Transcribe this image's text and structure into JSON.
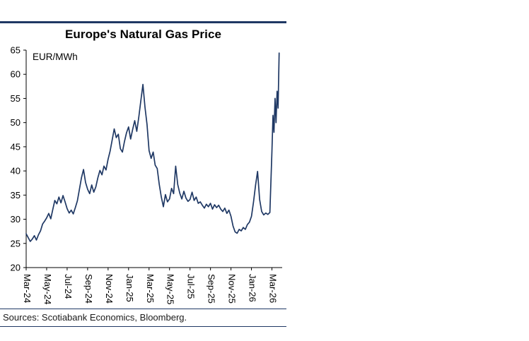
{
  "chart_data": {
    "type": "line",
    "title": "Europe's Natural Gas Price",
    "ylabel": "EUR/MWh",
    "xlabel": "",
    "source": "Sources: Scotiabank Economics, Bloomberg.",
    "legend": "none",
    "grid": false,
    "line_color": "#1f3864",
    "axis_color": "#000000",
    "ylim": [
      20,
      65
    ],
    "y_ticks": [
      20,
      25,
      30,
      35,
      40,
      45,
      50,
      55,
      60,
      65
    ],
    "xlim_months": [
      0,
      25
    ],
    "x_ticks": [
      {
        "month": 0,
        "label": "Mar-24"
      },
      {
        "month": 2,
        "label": "May-24"
      },
      {
        "month": 4,
        "label": "Jul-24"
      },
      {
        "month": 6,
        "label": "Sep-24"
      },
      {
        "month": 8,
        "label": "Nov-24"
      },
      {
        "month": 10,
        "label": "Jan-25"
      },
      {
        "month": 12,
        "label": "Mar-25"
      },
      {
        "month": 14,
        "label": "May-25"
      },
      {
        "month": 16,
        "label": "Jul-25"
      },
      {
        "month": 18,
        "label": "Sep-25"
      },
      {
        "month": 20,
        "label": "Nov-25"
      },
      {
        "month": 22,
        "label": "Jan-26"
      },
      {
        "month": 24,
        "label": "Mar-26"
      }
    ],
    "points": [
      [
        0.0,
        27.0
      ],
      [
        0.2,
        26.2
      ],
      [
        0.4,
        25.4
      ],
      [
        0.6,
        25.9
      ],
      [
        0.8,
        26.6
      ],
      [
        1.0,
        25.7
      ],
      [
        1.2,
        26.8
      ],
      [
        1.4,
        27.6
      ],
      [
        1.6,
        29.0
      ],
      [
        1.8,
        29.6
      ],
      [
        2.0,
        30.3
      ],
      [
        2.2,
        31.2
      ],
      [
        2.4,
        30.1
      ],
      [
        2.6,
        32.0
      ],
      [
        2.8,
        33.9
      ],
      [
        3.0,
        33.2
      ],
      [
        3.2,
        34.6
      ],
      [
        3.4,
        33.4
      ],
      [
        3.6,
        34.9
      ],
      [
        3.8,
        33.6
      ],
      [
        4.0,
        32.2
      ],
      [
        4.2,
        31.3
      ],
      [
        4.4,
        31.9
      ],
      [
        4.6,
        31.1
      ],
      [
        4.8,
        32.4
      ],
      [
        5.0,
        33.8
      ],
      [
        5.2,
        36.2
      ],
      [
        5.4,
        38.6
      ],
      [
        5.6,
        40.3
      ],
      [
        5.8,
        37.6
      ],
      [
        6.0,
        36.2
      ],
      [
        6.2,
        35.3
      ],
      [
        6.4,
        37.1
      ],
      [
        6.6,
        35.6
      ],
      [
        6.8,
        36.7
      ],
      [
        7.0,
        38.6
      ],
      [
        7.2,
        40.1
      ],
      [
        7.4,
        39.2
      ],
      [
        7.6,
        41.0
      ],
      [
        7.8,
        40.2
      ],
      [
        8.0,
        42.4
      ],
      [
        8.2,
        44.1
      ],
      [
        8.4,
        46.4
      ],
      [
        8.6,
        48.7
      ],
      [
        8.8,
        46.9
      ],
      [
        9.0,
        47.6
      ],
      [
        9.2,
        44.6
      ],
      [
        9.4,
        43.9
      ],
      [
        9.6,
        46.1
      ],
      [
        9.8,
        47.9
      ],
      [
        10.0,
        49.1
      ],
      [
        10.2,
        46.6
      ],
      [
        10.4,
        48.6
      ],
      [
        10.6,
        50.4
      ],
      [
        10.8,
        48.2
      ],
      [
        11.0,
        51.2
      ],
      [
        11.2,
        54.6
      ],
      [
        11.4,
        57.9
      ],
      [
        11.6,
        53.2
      ],
      [
        11.8,
        49.6
      ],
      [
        12.0,
        44.2
      ],
      [
        12.2,
        42.6
      ],
      [
        12.4,
        43.9
      ],
      [
        12.6,
        41.2
      ],
      [
        12.8,
        40.5
      ],
      [
        13.0,
        37.2
      ],
      [
        13.2,
        34.6
      ],
      [
        13.4,
        32.6
      ],
      [
        13.6,
        35.1
      ],
      [
        13.8,
        33.6
      ],
      [
        14.0,
        34.2
      ],
      [
        14.2,
        36.4
      ],
      [
        14.4,
        35.3
      ],
      [
        14.6,
        41.0
      ],
      [
        14.8,
        37.2
      ],
      [
        15.0,
        35.4
      ],
      [
        15.2,
        34.2
      ],
      [
        15.4,
        35.8
      ],
      [
        15.6,
        34.4
      ],
      [
        15.8,
        33.7
      ],
      [
        16.0,
        34.1
      ],
      [
        16.2,
        35.6
      ],
      [
        16.4,
        33.9
      ],
      [
        16.6,
        34.6
      ],
      [
        16.8,
        33.3
      ],
      [
        17.0,
        33.6
      ],
      [
        17.2,
        32.9
      ],
      [
        17.4,
        32.3
      ],
      [
        17.6,
        33.1
      ],
      [
        17.8,
        32.6
      ],
      [
        18.0,
        33.3
      ],
      [
        18.2,
        32.1
      ],
      [
        18.4,
        33.0
      ],
      [
        18.6,
        32.4
      ],
      [
        18.8,
        32.9
      ],
      [
        19.0,
        32.1
      ],
      [
        19.2,
        31.6
      ],
      [
        19.4,
        32.3
      ],
      [
        19.6,
        31.2
      ],
      [
        19.8,
        31.9
      ],
      [
        20.0,
        30.6
      ],
      [
        20.2,
        28.6
      ],
      [
        20.4,
        27.4
      ],
      [
        20.6,
        27.1
      ],
      [
        20.8,
        27.9
      ],
      [
        21.0,
        27.6
      ],
      [
        21.2,
        28.3
      ],
      [
        21.4,
        27.9
      ],
      [
        21.6,
        28.9
      ],
      [
        21.8,
        29.4
      ],
      [
        22.0,
        30.6
      ],
      [
        22.2,
        33.6
      ],
      [
        22.4,
        37.1
      ],
      [
        22.6,
        39.9
      ],
      [
        22.8,
        34.1
      ],
      [
        23.0,
        31.6
      ],
      [
        23.2,
        30.9
      ],
      [
        23.4,
        31.3
      ],
      [
        23.6,
        31.0
      ],
      [
        23.8,
        31.4
      ],
      [
        24.0,
        44.0
      ],
      [
        24.1,
        51.5
      ],
      [
        24.2,
        48.0
      ],
      [
        24.3,
        55.0
      ],
      [
        24.4,
        50.0
      ],
      [
        24.5,
        56.5
      ],
      [
        24.6,
        53.0
      ],
      [
        24.7,
        64.4
      ]
    ]
  }
}
